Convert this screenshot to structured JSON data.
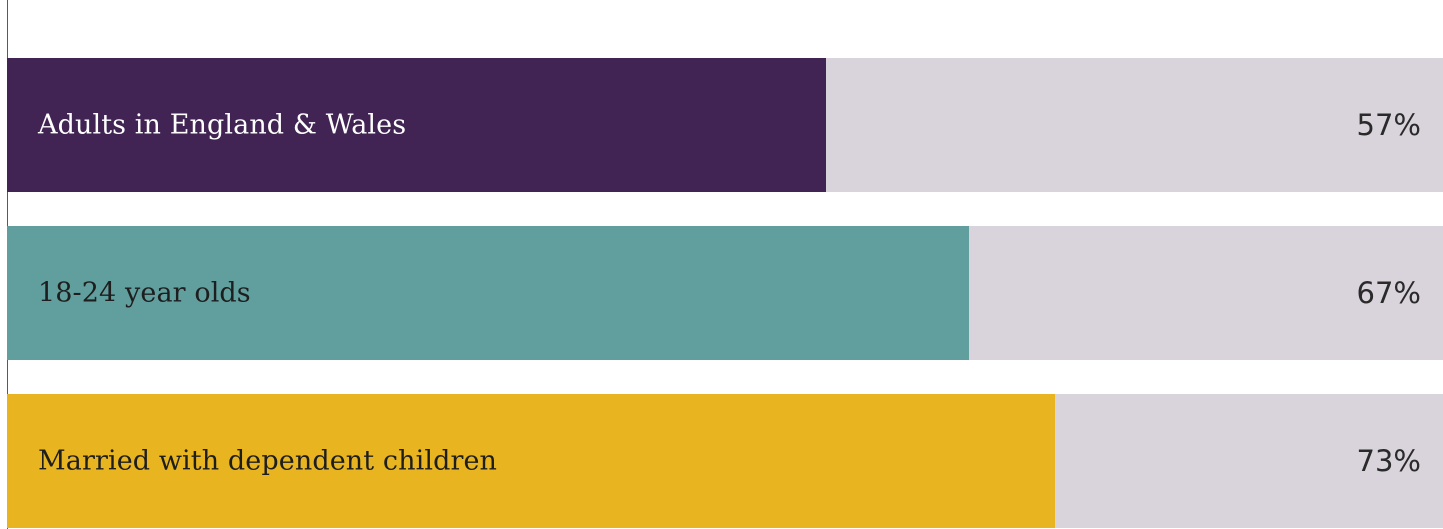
{
  "chart_data": {
    "type": "bar",
    "orientation": "horizontal",
    "xlim": [
      0,
      100
    ],
    "categories": [
      "Adults in England & Wales",
      "18-24 year olds",
      "Married with dependent children"
    ],
    "values": [
      57,
      67,
      73
    ],
    "value_labels": [
      "57%",
      "67%",
      "73%"
    ],
    "bar_colors": [
      "#412453",
      "#609f9e",
      "#e8b41f"
    ],
    "label_colors": [
      "#ffffff",
      "#1e1e1e",
      "#1e1e1e"
    ],
    "track_color": "#d9d3dc",
    "title": "",
    "xlabel": "",
    "ylabel": ""
  }
}
